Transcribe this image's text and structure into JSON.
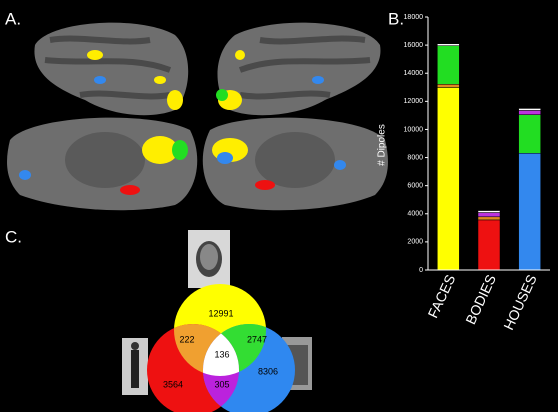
{
  "figure": {
    "panel_label": "A."
  },
  "chart_data": [
    {
      "type": "bar",
      "panel_label": "B.",
      "ylabel": "# Dipoles",
      "categories": [
        "FACES",
        "BODIES",
        "HOUSES"
      ],
      "ylim": [
        0,
        18000
      ],
      "yticks": [
        0,
        2000,
        4000,
        6000,
        8000,
        10000,
        12000,
        14000,
        16000,
        18000
      ],
      "stacked": true,
      "series": [
        {
          "color": "#ffff00",
          "values": [
            12991,
            null,
            null
          ]
        },
        {
          "color": "#ee1111",
          "values": [
            null,
            3564,
            null
          ]
        },
        {
          "color": "#3388ee",
          "values": [
            null,
            null,
            8306
          ]
        },
        {
          "color": "#e08a20",
          "values": [
            222,
            222,
            null
          ]
        },
        {
          "color": "#22dd22",
          "values": [
            2747,
            null,
            2747
          ]
        },
        {
          "color": "#bb33dd",
          "values": [
            null,
            305,
            305
          ]
        },
        {
          "color": "#ffffff",
          "values": [
            136,
            136,
            136
          ]
        }
      ]
    },
    {
      "type": "venn",
      "panel_label": "C.",
      "regions": [
        {
          "value": 12991,
          "color": "#ffff00"
        },
        {
          "value": 222,
          "color": "#f0a030"
        },
        {
          "value": 2747,
          "color": "#33dd33"
        },
        {
          "value": 136,
          "color": "#ffffff"
        },
        {
          "value": 3564,
          "color": "#ee1111"
        },
        {
          "value": 305,
          "color": "#bb22dd"
        },
        {
          "value": 8306,
          "color": "#2f88f0"
        }
      ]
    }
  ]
}
